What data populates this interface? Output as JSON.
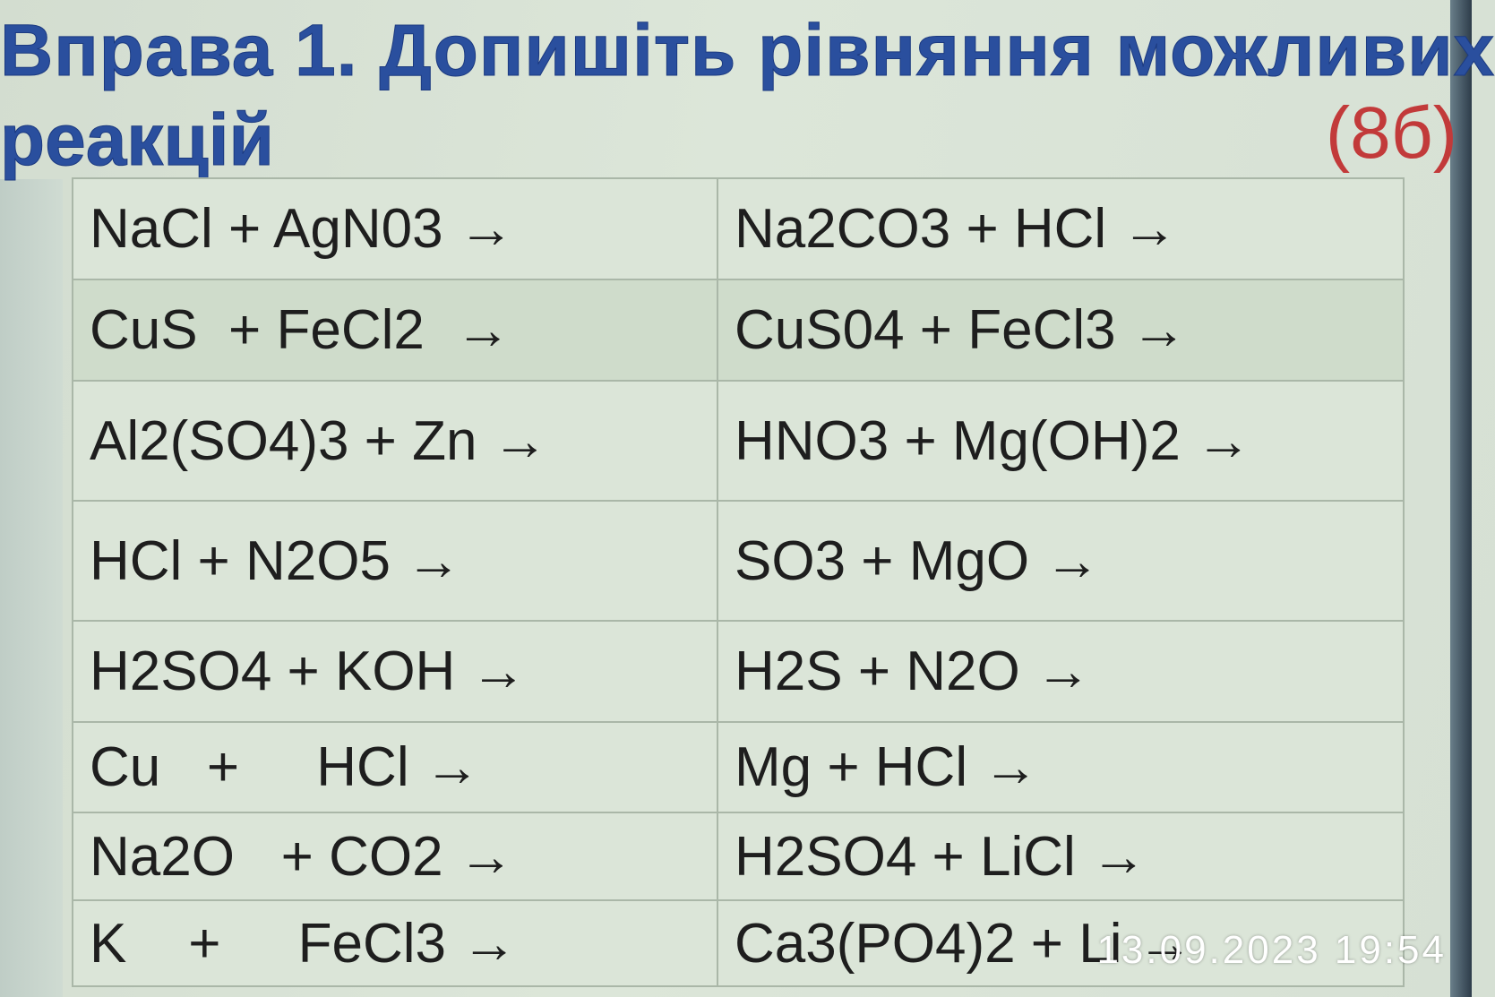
{
  "title": {
    "line1": "Вправа 1. Допишіть рівняння можливих",
    "line2": "реакцій",
    "points": "(8б)"
  },
  "colors": {
    "title": "#2a4f9e",
    "points": "#c23a3a",
    "background": "#dbe5d8"
  },
  "rows": [
    [
      "NaCl + AgN03 →",
      "Na2CO3 + HCl →"
    ],
    [
      "CuS  + FeCl2  →",
      "CuS04 + FeCl3 →"
    ],
    [
      "Al2(SO4)3 + Zn →",
      "HNO3 + Mg(OH)2 →"
    ],
    [
      "HCl + N2O5 →",
      "SO3 + MgO →"
    ],
    [
      "H2SO4 + KOH →",
      "H2S + N2O →"
    ],
    [
      "Cu   +     HCl →",
      "Mg + HCl →"
    ],
    [
      "Na2O   + CO2 →",
      "H2SO4 + LiCl →"
    ],
    [
      "K    +     FeCl3 →",
      "Ca3(PO4)2 + Li →"
    ]
  ],
  "timestamp": "13.09.2023  19:54"
}
